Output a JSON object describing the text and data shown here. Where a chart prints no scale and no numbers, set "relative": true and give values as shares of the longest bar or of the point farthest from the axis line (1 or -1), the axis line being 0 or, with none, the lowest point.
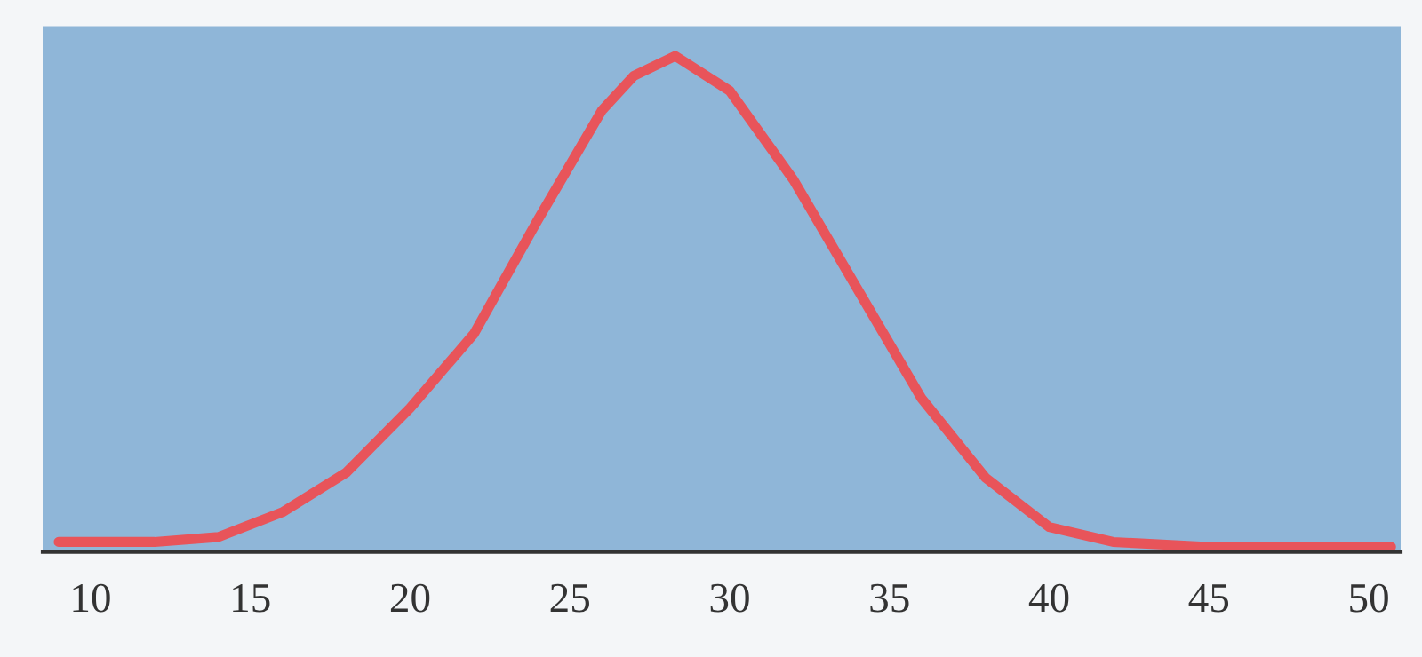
{
  "chart_data": {
    "type": "line",
    "relative": true,
    "x": [
      9,
      12,
      14,
      16,
      18,
      20,
      22,
      24,
      26,
      27,
      28.3,
      30,
      32,
      34,
      36,
      38,
      40,
      42,
      45,
      50.7
    ],
    "series": [
      {
        "color": "#e8545a",
        "values": [
          0.02,
          0.02,
          0.03,
          0.08,
          0.16,
          0.29,
          0.44,
          0.67,
          0.89,
          0.96,
          1,
          0.93,
          0.75,
          0.53,
          0.31,
          0.15,
          0.05,
          0.02,
          0.01,
          0.01
        ]
      }
    ],
    "xlim": [
      8.5,
      51
    ],
    "xticks": [
      10,
      15,
      20,
      25,
      30,
      35,
      40,
      45,
      50
    ],
    "grid": false,
    "legend": false,
    "marker": "none",
    "line_style": "solid"
  }
}
